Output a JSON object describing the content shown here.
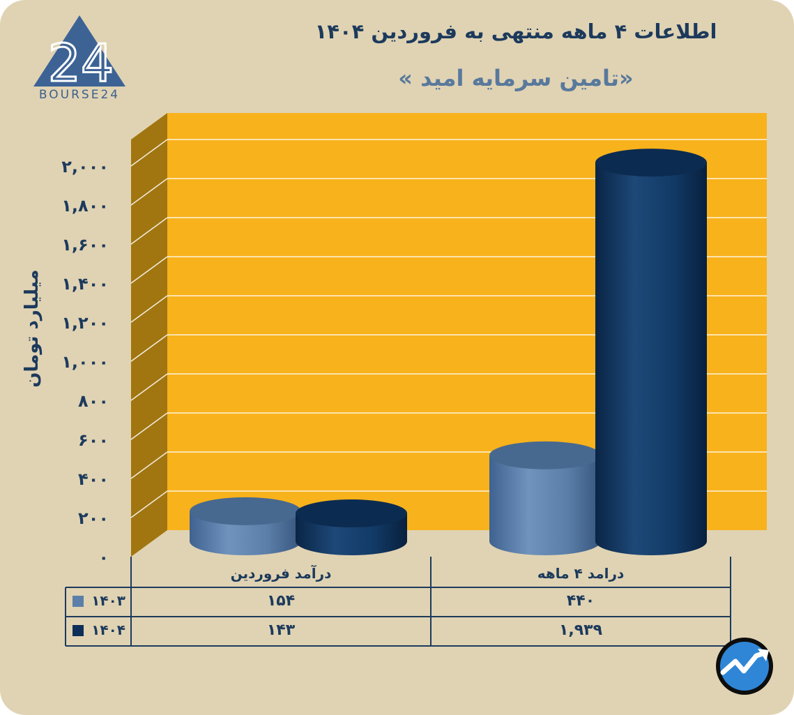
{
  "header": {
    "title": "اطلاعات ۴ ماهه منتهی به فروردین ۱۴۰۴",
    "subtitle": "«تامین سرمایه امید »"
  },
  "logo": {
    "text": "BOURSE24",
    "mark": "24",
    "icon": "triangle-logo-icon"
  },
  "badge": {
    "icon": "trend-arrow-icon"
  },
  "colors": {
    "background": "#e0d3b3",
    "plot": "#f8b21c",
    "wall": "#a17610",
    "series_1403": "#5b7fa8",
    "series_1404": "#0d2f57",
    "text": "#1c3a5c"
  },
  "chart_data": {
    "type": "bar",
    "style": "3d-cylinder",
    "title": "اطلاعات ۴ ماهه منتهی به فروردین ۱۴۰۴",
    "subtitle": "«تامین سرمایه امید »",
    "ylabel": "میلیارد تومان",
    "ylim": [
      0,
      2000
    ],
    "yticks": [
      0,
      200,
      400,
      600,
      800,
      1000,
      1200,
      1400,
      1600,
      1800,
      2000
    ],
    "ytick_labels": [
      "۰",
      "۲۰۰",
      "۴۰۰",
      "۶۰۰",
      "۸۰۰",
      "۱,۰۰۰",
      "۱,۲۰۰",
      "۱,۴۰۰",
      "۱,۶۰۰",
      "۱,۸۰۰",
      "۲,۰۰۰"
    ],
    "grid": true,
    "categories": [
      "درآمد فروردین",
      "درامد ۴ ماهه"
    ],
    "series": [
      {
        "name": "۱۴۰۳",
        "values": [
          154,
          440
        ],
        "labels": [
          "۱۵۴",
          "۴۴۰"
        ],
        "color": "#5b7fa8"
      },
      {
        "name": "۱۴۰۴",
        "values": [
          143,
          1939
        ],
        "labels": [
          "۱۴۳",
          "۱,۹۳۹"
        ],
        "color": "#0d2f57"
      }
    ],
    "legend": "data-table-left"
  }
}
